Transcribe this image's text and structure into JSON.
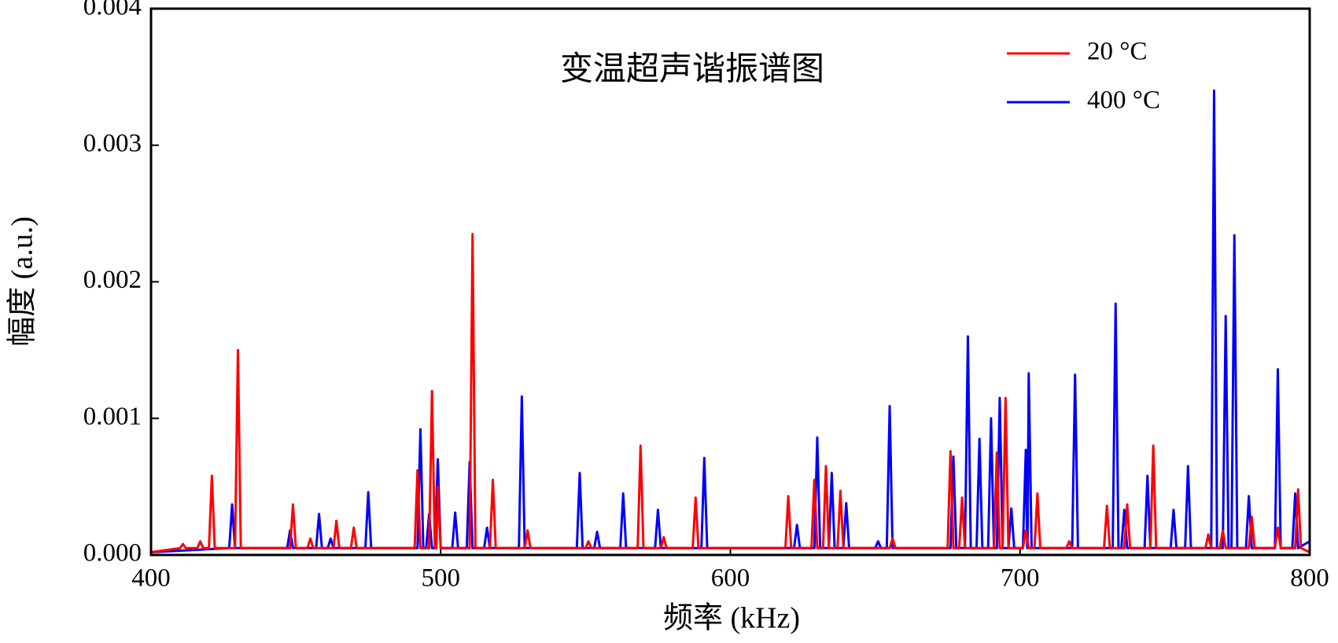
{
  "chart_data": {
    "type": "line",
    "title": "变温超声谐振谱图",
    "x_label": "频率 (kHz)",
    "y_label": "幅度 (a.u.)",
    "xlim": [
      400,
      800
    ],
    "xticks": [
      400,
      500,
      600,
      700,
      800
    ],
    "ylim": [
      0,
      0.004
    ],
    "yticks": [
      {
        "value": 0,
        "label": "0.000"
      },
      {
        "value": 0.001,
        "label": "0.001"
      },
      {
        "value": 0.002,
        "label": "0.002"
      },
      {
        "value": 0.003,
        "label": "0.003"
      },
      {
        "value": 0.004,
        "label": "0.004"
      }
    ],
    "legend": "upper right",
    "series": [
      {
        "name": "400 °C",
        "color": "#0000ff",
        "x": [
          400,
          427,
          428,
          429,
          447,
          448,
          449,
          457,
          458,
          459,
          461,
          462,
          463,
          474,
          475,
          476,
          492,
          493,
          494,
          495,
          496,
          497,
          498,
          499,
          500,
          504,
          505,
          506,
          509,
          510,
          511,
          515,
          516,
          517,
          527,
          528,
          529,
          547,
          548,
          549,
          553,
          554,
          555,
          562,
          563,
          564,
          574,
          575,
          576,
          590,
          591,
          592,
          622,
          623,
          624,
          629,
          630,
          631,
          634,
          635,
          636,
          639,
          640,
          641,
          650,
          651,
          652,
          654,
          655,
          656,
          676,
          677,
          678,
          681,
          682,
          683,
          685,
          686,
          687,
          689,
          690,
          691,
          692,
          693,
          694,
          696,
          697,
          698,
          701,
          702,
          702.5,
          702.6,
          703,
          704,
          718,
          719,
          720,
          732,
          733,
          734,
          735,
          736,
          737,
          743,
          744,
          745,
          752,
          753,
          754,
          757,
          758,
          759,
          766,
          767,
          768,
          770,
          771,
          772,
          773,
          774,
          775,
          778,
          779,
          780,
          788,
          789,
          790,
          794,
          795,
          796,
          800
        ],
        "values": [
          2e-05,
          5e-05,
          0.00037,
          5e-05,
          5e-05,
          0.00018,
          5e-05,
          5e-05,
          0.0003,
          5e-05,
          5e-05,
          0.00012,
          5e-05,
          5e-05,
          0.00046,
          5e-05,
          5e-05,
          0.00092,
          5e-05,
          5e-05,
          0.0003,
          5e-05,
          5e-05,
          0.0007,
          5e-05,
          5e-05,
          0.00031,
          5e-05,
          5e-05,
          0.00068,
          5e-05,
          5e-05,
          0.0002,
          5e-05,
          5e-05,
          0.00116,
          5e-05,
          5e-05,
          0.0006,
          5e-05,
          5e-05,
          0.00017,
          5e-05,
          5e-05,
          0.00045,
          5e-05,
          5e-05,
          0.00033,
          5e-05,
          5e-05,
          0.00071,
          5e-05,
          5e-05,
          0.00022,
          5e-05,
          5e-05,
          0.00086,
          5e-05,
          5e-05,
          0.0006,
          5e-05,
          5e-05,
          0.00038,
          5e-05,
          5e-05,
          0.0001,
          5e-05,
          5e-05,
          0.00109,
          5e-05,
          5e-05,
          0.00072,
          5e-05,
          5e-05,
          0.0016,
          5e-05,
          5e-05,
          0.00085,
          5e-05,
          5e-05,
          0.001,
          5e-05,
          5e-05,
          0.00115,
          5e-05,
          5e-05,
          0.00034,
          5e-05,
          5e-05,
          0.00077,
          5e-05,
          5e-05,
          0.00133,
          5e-05,
          5e-05,
          0.00132,
          5e-05,
          5e-05,
          0.00184,
          5e-05,
          5e-05,
          0.00033,
          5e-05,
          5e-05,
          0.00058,
          5e-05,
          5e-05,
          0.00033,
          5e-05,
          5e-05,
          0.00065,
          5e-05,
          5e-05,
          0.0034,
          5e-05,
          5e-05,
          0.00175,
          5e-05,
          5e-05,
          0.00234,
          5e-05,
          5e-05,
          0.00043,
          5e-05,
          5e-05,
          0.00136,
          5e-05,
          5e-05,
          0.00045,
          5e-05,
          0.0001
        ]
      },
      {
        "name": "20 °C",
        "color": "#ff0000",
        "x": [
          400,
          410,
          411,
          412,
          416,
          417,
          418,
          420,
          421,
          422,
          429,
          430,
          431,
          448,
          449,
          450,
          454,
          455,
          456,
          463,
          464,
          465,
          469,
          470,
          471,
          491,
          492,
          493,
          496,
          497,
          498,
          498.5,
          499,
          500,
          510,
          511,
          512,
          517,
          518,
          519,
          529,
          530,
          531,
          550,
          551,
          552,
          568,
          569,
          570,
          576,
          577,
          578,
          587,
          588,
          589,
          619,
          620,
          621,
          628,
          629,
          630,
          632,
          633,
          634,
          637,
          638,
          639,
          655,
          656,
          657,
          675,
          676,
          677,
          679,
          680,
          681,
          691,
          692,
          693,
          694,
          695,
          696,
          701,
          702,
          703,
          705,
          706,
          707,
          716,
          717,
          718,
          729,
          730,
          731,
          736,
          737,
          738,
          745,
          746,
          747,
          764,
          765,
          766,
          769,
          770,
          771,
          779,
          780,
          781,
          788,
          789,
          790,
          795,
          796,
          797,
          800
        ],
        "values": [
          2e-05,
          5e-05,
          8e-05,
          5e-05,
          5e-05,
          0.0001,
          5e-05,
          5e-05,
          0.00058,
          5e-05,
          5e-05,
          0.0015,
          5e-05,
          5e-05,
          0.00037,
          5e-05,
          5e-05,
          0.00012,
          5e-05,
          5e-05,
          0.00025,
          5e-05,
          5e-05,
          0.0002,
          5e-05,
          5e-05,
          0.00062,
          5e-05,
          5e-05,
          0.0012,
          5e-05,
          5e-05,
          0.0005,
          5e-05,
          5e-05,
          0.00235,
          5e-05,
          5e-05,
          0.00055,
          5e-05,
          5e-05,
          0.00018,
          5e-05,
          5e-05,
          0.0001,
          5e-05,
          5e-05,
          0.0008,
          5e-05,
          5e-05,
          0.00013,
          5e-05,
          5e-05,
          0.00042,
          5e-05,
          5e-05,
          0.00043,
          5e-05,
          5e-05,
          0.00055,
          5e-05,
          5e-05,
          0.00065,
          5e-05,
          5e-05,
          0.00047,
          5e-05,
          5e-05,
          0.00012,
          5e-05,
          5e-05,
          0.00076,
          5e-05,
          5e-05,
          0.00042,
          5e-05,
          5e-05,
          0.00075,
          5e-05,
          5e-05,
          0.00115,
          5e-05,
          5e-05,
          0.00018,
          5e-05,
          5e-05,
          0.00045,
          5e-05,
          5e-05,
          0.0001,
          5e-05,
          5e-05,
          0.00036,
          5e-05,
          5e-05,
          0.00037,
          5e-05,
          5e-05,
          0.0008,
          5e-05,
          5e-05,
          0.00015,
          5e-05,
          5e-05,
          0.00018,
          5e-05,
          5e-05,
          0.00028,
          5e-05,
          5e-05,
          0.0002,
          5e-05,
          5e-05,
          0.00048,
          5e-05,
          2e-05
        ]
      }
    ]
  }
}
